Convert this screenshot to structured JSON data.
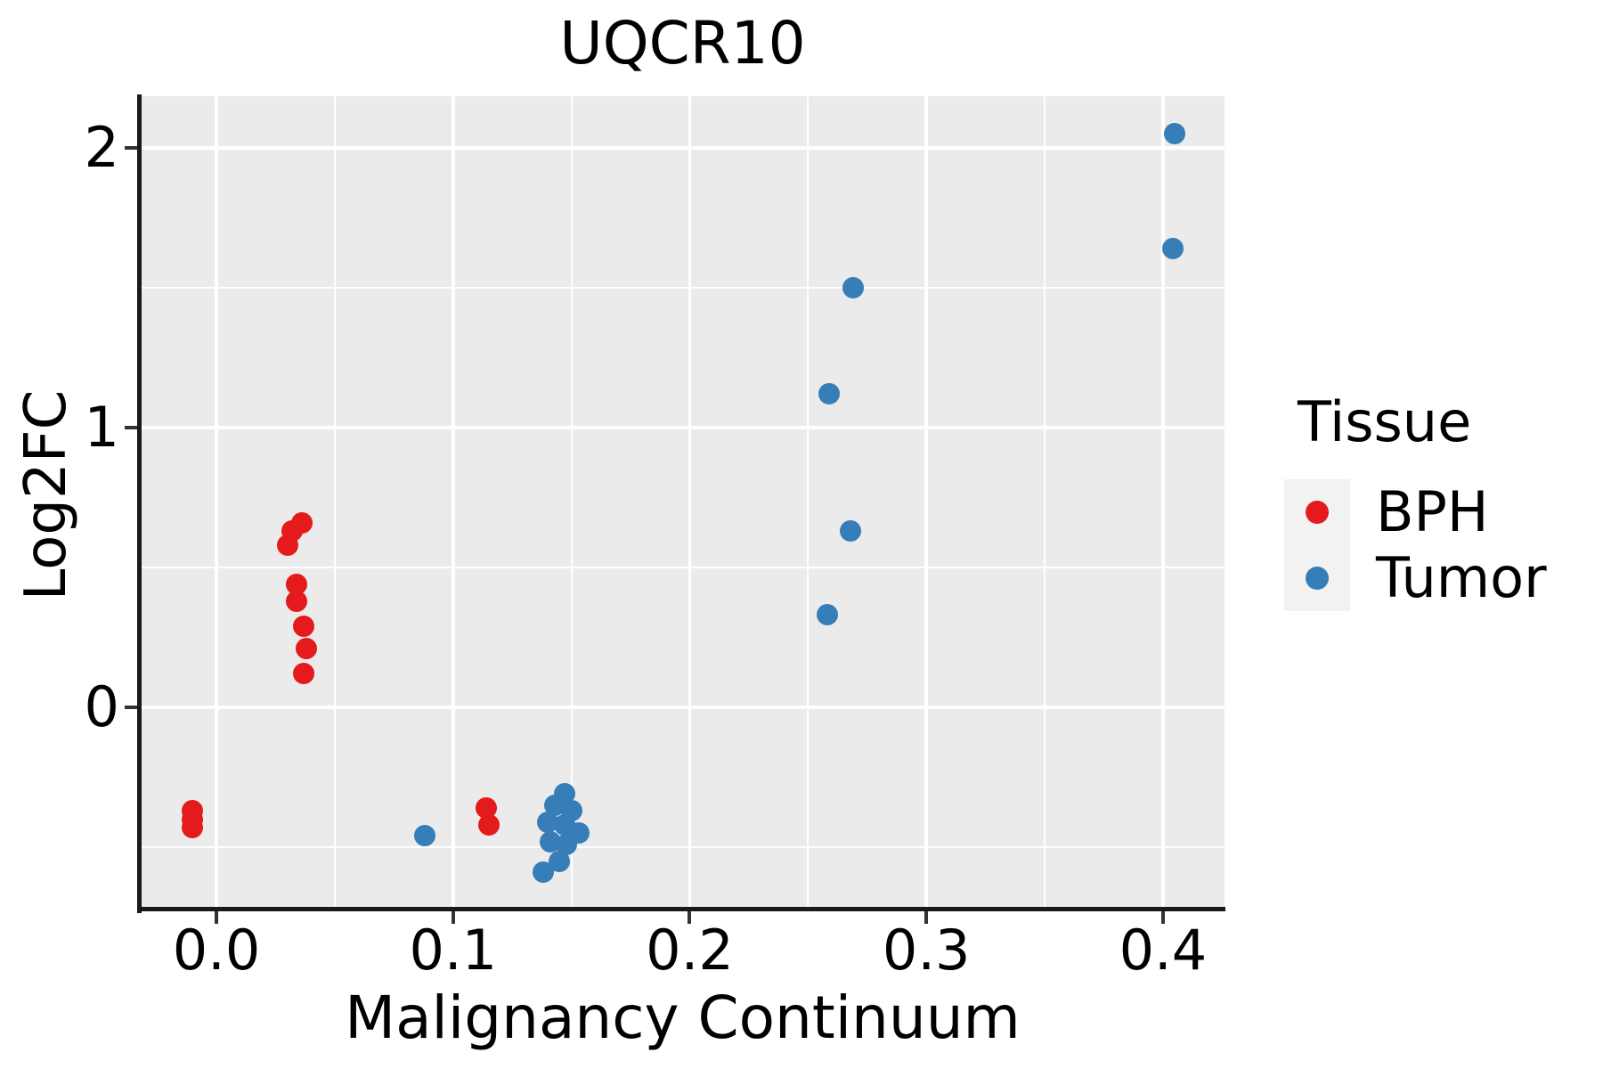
{
  "title": "UQCR10",
  "style": {
    "panel_bg": "#ebebeb",
    "grid_color": "#ffffff",
    "spine_color": "#1a1a1a",
    "tick_color": "#333333",
    "legend_key_bg": "#f2f2f2",
    "bph_color": "#e41a1c",
    "tumor_color": "#377eb8"
  },
  "chart_data": {
    "type": "scatter",
    "title": "UQCR10",
    "xlabel": "Malignancy Continuum",
    "ylabel": "Log2FC",
    "xlim": [
      -0.032,
      0.426
    ],
    "ylim": [
      -0.726,
      2.185
    ],
    "x_ticks": [
      0.0,
      0.1,
      0.2,
      0.3,
      0.4
    ],
    "x_tick_labels": [
      "0.0",
      "0.1",
      "0.2",
      "0.3",
      "0.4"
    ],
    "x_minor_ticks": [
      0.05,
      0.15,
      0.25,
      0.35
    ],
    "y_ticks": [
      0,
      1,
      2
    ],
    "y_tick_labels": [
      "0",
      "1",
      "2"
    ],
    "y_minor_ticks": [
      -0.5,
      0.5,
      1.5
    ],
    "grid": true,
    "legend": {
      "title": "Tissue",
      "position": "right",
      "entries": [
        {
          "label": "BPH",
          "color": "#e41a1c"
        },
        {
          "label": "Tumor",
          "color": "#377eb8"
        }
      ]
    },
    "series": [
      {
        "name": "BPH",
        "color": "#e41a1c",
        "points": [
          [
            -0.01,
            -0.37
          ],
          [
            -0.01,
            -0.4
          ],
          [
            -0.01,
            -0.43
          ],
          [
            0.036,
            0.66
          ],
          [
            0.032,
            0.63
          ],
          [
            0.03,
            0.58
          ],
          [
            0.034,
            0.44
          ],
          [
            0.034,
            0.38
          ],
          [
            0.037,
            0.29
          ],
          [
            0.038,
            0.21
          ],
          [
            0.037,
            0.12
          ],
          [
            0.114,
            -0.36
          ],
          [
            0.115,
            -0.42
          ]
        ]
      },
      {
        "name": "Tumor",
        "color": "#377eb8",
        "points": [
          [
            0.088,
            -0.46
          ],
          [
            0.147,
            -0.31
          ],
          [
            0.143,
            -0.35
          ],
          [
            0.15,
            -0.37
          ],
          [
            0.14,
            -0.41
          ],
          [
            0.147,
            -0.42
          ],
          [
            0.153,
            -0.45
          ],
          [
            0.141,
            -0.48
          ],
          [
            0.148,
            -0.49
          ],
          [
            0.145,
            -0.55
          ],
          [
            0.138,
            -0.59
          ],
          [
            0.269,
            1.5
          ],
          [
            0.259,
            1.12
          ],
          [
            0.268,
            0.63
          ],
          [
            0.258,
            0.33
          ],
          [
            0.405,
            2.05
          ],
          [
            0.404,
            1.64
          ]
        ]
      }
    ]
  }
}
